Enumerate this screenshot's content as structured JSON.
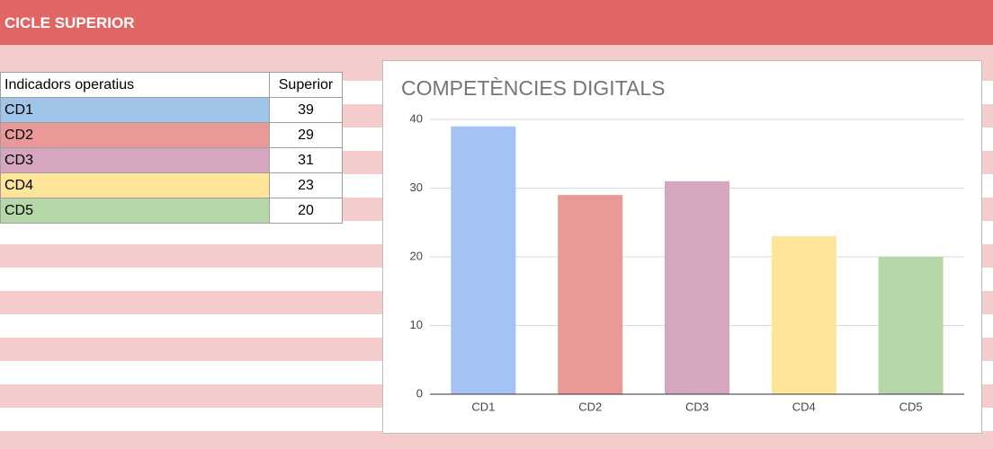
{
  "header": {
    "title": "CICLE SUPERIOR"
  },
  "table": {
    "columns": [
      "Indicadors operatius",
      "Superior"
    ],
    "rows": [
      [
        "CD1",
        39
      ],
      [
        "CD2",
        29
      ],
      [
        "CD3",
        31
      ],
      [
        "CD4",
        23
      ],
      [
        "CD5",
        20
      ]
    ],
    "row_colors": [
      "#9fc5e8",
      "#ea9999",
      "#d5a6bd",
      "#ffe599",
      "#b6d7a8"
    ]
  },
  "chart_data": {
    "type": "bar",
    "title": "COMPETÈNCIES DIGITALS",
    "categories": [
      "CD1",
      "CD2",
      "CD3",
      "CD4",
      "CD5"
    ],
    "values": [
      39,
      29,
      31,
      23,
      20
    ],
    "colors": [
      "#a4c2f4",
      "#ea9999",
      "#d5a6bd",
      "#ffe599",
      "#b6d7a8"
    ],
    "ylim": [
      0,
      40
    ],
    "yticks": [
      0,
      10,
      20,
      30,
      40
    ],
    "grid": true
  }
}
